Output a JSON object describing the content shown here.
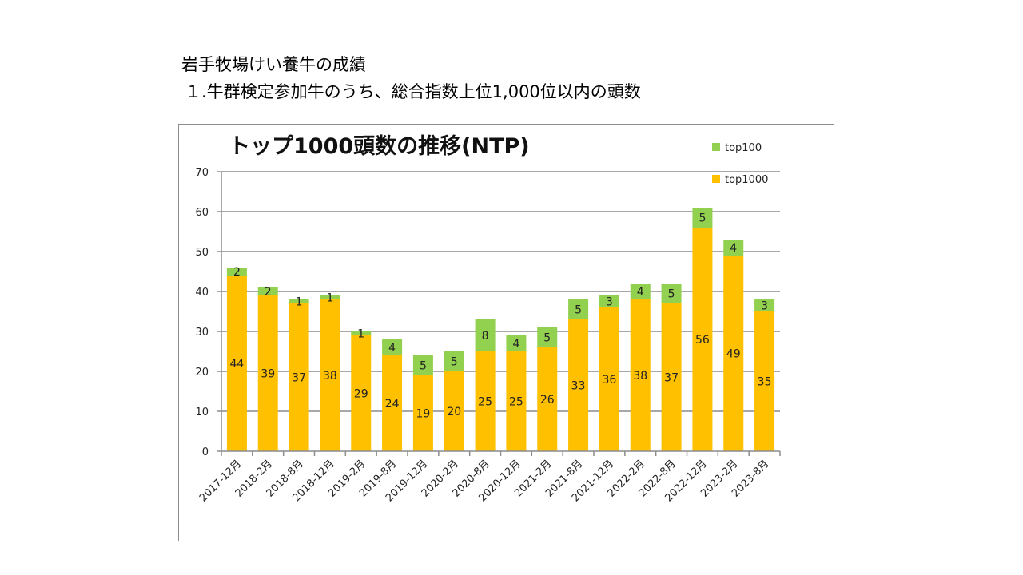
{
  "slide": {
    "title": "岩手牧場けい養牛の成績",
    "subtitle": "１.牛群検定参加牛のうち、総合指数上位1,000位以内の頭数"
  },
  "colors": {
    "top1000": "#FFC000",
    "top100": "#92D050",
    "gridline": "#8c8c8c",
    "axis": "#8c8c8c"
  },
  "chart_data": {
    "type": "bar",
    "stacked": true,
    "title": "トップ1000頭数の推移(NTP)",
    "xlabel": "",
    "ylabel": "",
    "ylim": [
      0,
      70
    ],
    "yticks": [
      0,
      10,
      20,
      30,
      40,
      50,
      60,
      70
    ],
    "grid": true,
    "legend_position": "top-right",
    "categories": [
      "2017-12月",
      "2018-2月",
      "2018-8月",
      "2018-12月",
      "2019-2月",
      "2019-8月",
      "2019-12月",
      "2020-2月",
      "2020-8月",
      "2020-12月",
      "2021-2月",
      "2021-8月",
      "2021-12月",
      "2022-2月",
      "2022-8月",
      "2022-12月",
      "2023-2月",
      "2023-8月"
    ],
    "series": [
      {
        "name": "top1000",
        "values": [
          44,
          39,
          37,
          38,
          29,
          24,
          19,
          20,
          25,
          25,
          26,
          33,
          36,
          38,
          37,
          56,
          49,
          35
        ]
      },
      {
        "name": "top100",
        "values": [
          2,
          2,
          1,
          1,
          1,
          4,
          5,
          5,
          8,
          4,
          5,
          5,
          3,
          4,
          5,
          5,
          4,
          3
        ]
      }
    ],
    "legend": [
      {
        "name": "top100",
        "icon": "green-square"
      },
      {
        "name": "top1000",
        "icon": "yellow-square"
      }
    ]
  }
}
